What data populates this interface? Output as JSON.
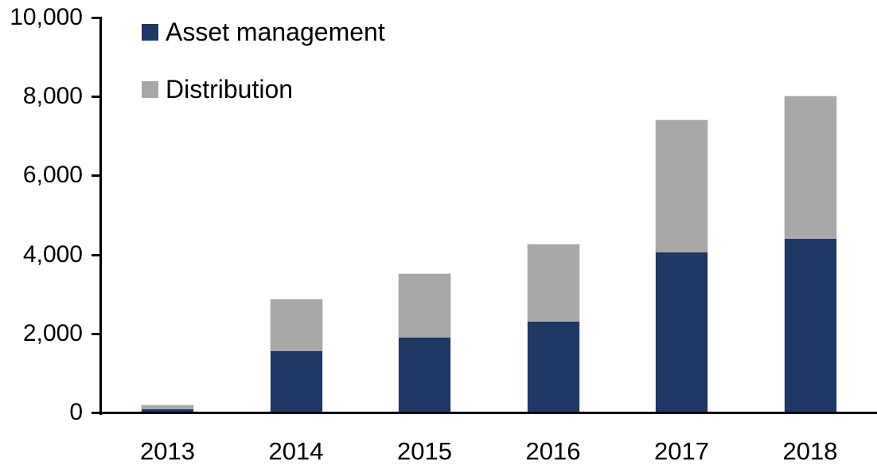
{
  "chart_data": {
    "type": "bar",
    "stacked": true,
    "title": "",
    "xlabel": "",
    "ylabel": "",
    "categories": [
      "2013",
      "2014",
      "2015",
      "2016",
      "2017",
      "2018"
    ],
    "series": [
      {
        "name": "Asset management",
        "color": "#1f3864",
        "values": [
          90,
          1550,
          1900,
          2300,
          4050,
          4400
        ]
      },
      {
        "name": "Distribution",
        "color": "#a8a8a8",
        "values": [
          100,
          1310,
          1600,
          1950,
          3350,
          3600
        ]
      }
    ],
    "ylim": [
      0,
      10000
    ],
    "ytick_interval": 2000,
    "ytick_labels": [
      "0",
      "2,000",
      "4,000",
      "6,000",
      "8,000",
      "10,000"
    ],
    "grid": false,
    "legend_position": "top-left",
    "axis_color": "#000000",
    "background_color": "#ffffff"
  }
}
